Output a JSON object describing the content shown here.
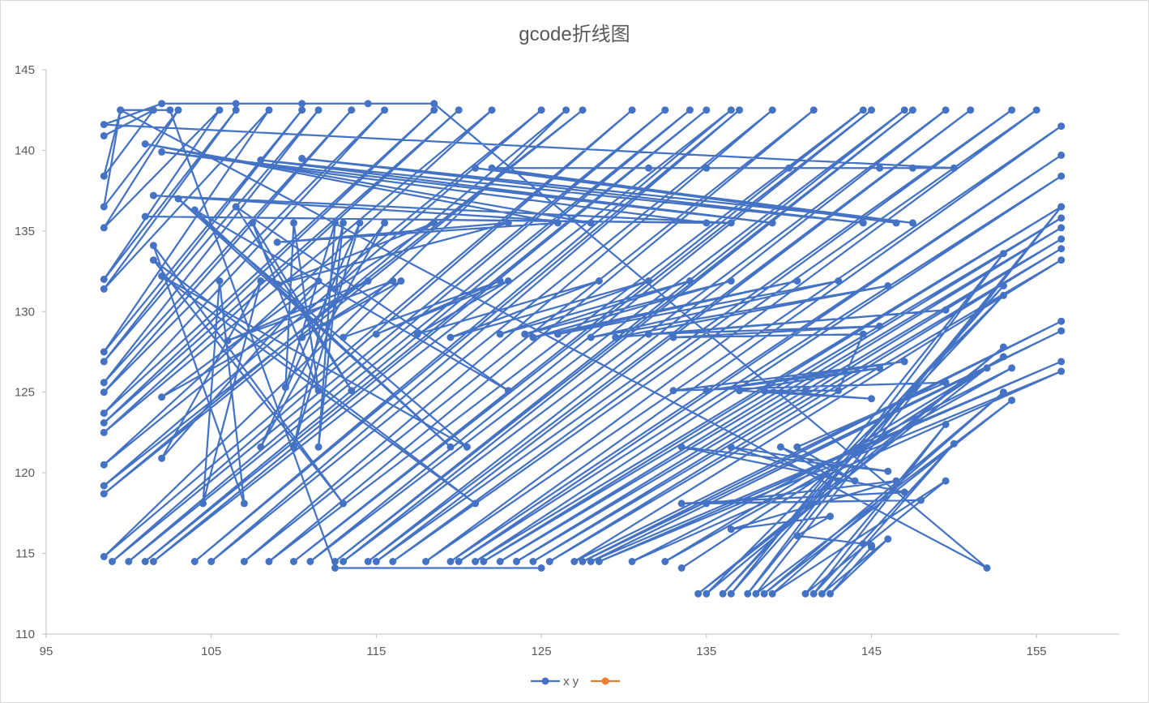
{
  "chart_data": {
    "type": "scatter",
    "title": "gcode折线图",
    "xlabel": "",
    "ylabel": "",
    "xlim": [
      95,
      160
    ],
    "ylim": [
      110,
      145
    ],
    "x_ticks": [
      95,
      105,
      115,
      125,
      135,
      145,
      155
    ],
    "y_ticks": [
      110,
      115,
      120,
      125,
      130,
      135,
      140,
      145
    ],
    "grid": false,
    "legend_position": "bottom",
    "series": [
      {
        "name": "x y",
        "color": "#4472c4",
        "marker": "circle",
        "lines": true,
        "points": [
          [
            98.5,
            140.9
          ],
          [
            101.5,
            142.5
          ],
          [
            98.5,
            138.4
          ],
          [
            99.5,
            142.5
          ],
          [
            98.5,
            136.5
          ],
          [
            103.0,
            142.5
          ],
          [
            98.5,
            135.2
          ],
          [
            105.5,
            142.5
          ],
          [
            98.5,
            132.0
          ],
          [
            106.5,
            142.5
          ],
          [
            98.5,
            131.4
          ],
          [
            108.5,
            142.5
          ],
          [
            98.5,
            127.5
          ],
          [
            110.5,
            142.5
          ],
          [
            98.5,
            126.9
          ],
          [
            111.5,
            142.5
          ],
          [
            98.5,
            125.6
          ],
          [
            113.5,
            142.5
          ],
          [
            98.5,
            125.0
          ],
          [
            115.5,
            142.5
          ],
          [
            98.5,
            123.7
          ],
          [
            118.5,
            142.5
          ],
          [
            98.5,
            123.1
          ],
          [
            120.0,
            142.5
          ],
          [
            98.5,
            122.5
          ],
          [
            122.0,
            142.5
          ],
          [
            98.5,
            120.5
          ],
          [
            125.0,
            142.5
          ],
          [
            98.5,
            119.2
          ],
          [
            127.5,
            142.5
          ],
          [
            98.5,
            118.7
          ],
          [
            126.5,
            142.5
          ],
          [
            98.5,
            114.8
          ],
          [
            130.5,
            142.5
          ],
          [
            99.0,
            114.5
          ],
          [
            132.5,
            142.5
          ],
          [
            100.0,
            114.5
          ],
          [
            134.0,
            142.5
          ],
          [
            101.0,
            114.5
          ],
          [
            135.0,
            142.5
          ],
          [
            101.5,
            114.5
          ],
          [
            136.5,
            142.5
          ],
          [
            104.0,
            114.5
          ],
          [
            137.0,
            142.5
          ],
          [
            105.0,
            114.5
          ],
          [
            139.0,
            142.5
          ],
          [
            107.0,
            114.5
          ],
          [
            141.5,
            142.5
          ],
          [
            108.5,
            114.5
          ],
          [
            144.5,
            142.5
          ],
          [
            110.0,
            114.5
          ],
          [
            145.0,
            142.5
          ],
          [
            111.0,
            114.5
          ],
          [
            147.0,
            142.5
          ],
          [
            112.5,
            114.5
          ],
          [
            147.5,
            142.5
          ],
          [
            113.0,
            114.5
          ],
          [
            149.5,
            142.5
          ],
          [
            114.5,
            114.5
          ],
          [
            151.0,
            142.5
          ],
          [
            115.0,
            114.5
          ],
          [
            153.5,
            142.5
          ],
          [
            116.0,
            114.5
          ],
          [
            155.0,
            142.5
          ],
          [
            118.0,
            114.5
          ],
          [
            156.5,
            141.5
          ],
          [
            119.5,
            114.5
          ],
          [
            156.5,
            139.7
          ],
          [
            120.0,
            114.5
          ],
          [
            156.5,
            138.4
          ],
          [
            121.0,
            114.5
          ],
          [
            156.5,
            136.5
          ],
          [
            121.5,
            114.5
          ],
          [
            156.5,
            135.8
          ],
          [
            122.5,
            114.5
          ],
          [
            156.5,
            135.2
          ],
          [
            123.5,
            114.5
          ],
          [
            156.5,
            134.5
          ],
          [
            124.5,
            114.5
          ],
          [
            156.5,
            133.9
          ],
          [
            125.5,
            114.5
          ],
          [
            156.5,
            133.2
          ],
          [
            127.0,
            114.5
          ],
          [
            156.5,
            129.4
          ],
          [
            127.5,
            114.5
          ],
          [
            156.5,
            128.8
          ],
          [
            128.0,
            114.5
          ],
          [
            156.5,
            126.9
          ],
          [
            128.5,
            114.5
          ],
          [
            156.5,
            126.3
          ],
          [
            130.5,
            114.5
          ],
          [
            153.5,
            126.5
          ],
          [
            132.5,
            114.5
          ],
          [
            153.0,
            127.2
          ],
          [
            133.5,
            114.1
          ],
          [
            152.0,
            126.5
          ],
          [
            134.5,
            112.5
          ],
          [
            153.0,
            127.8
          ],
          [
            135.0,
            112.5
          ],
          [
            153.0,
            131.0
          ],
          [
            136.0,
            112.5
          ],
          [
            153.0,
            131.6
          ],
          [
            136.5,
            112.5
          ],
          [
            153.0,
            133.6
          ],
          [
            137.5,
            112.5
          ],
          [
            156.5,
            136.5
          ],
          [
            138.0,
            112.5
          ],
          [
            153.5,
            124.5
          ],
          [
            138.5,
            112.5
          ],
          [
            153.0,
            125.0
          ],
          [
            139.0,
            112.5
          ],
          [
            149.5,
            119.5
          ],
          [
            141.0,
            112.5
          ],
          [
            149.5,
            123.0
          ],
          [
            141.5,
            112.5
          ],
          [
            150.0,
            121.8
          ],
          [
            142.0,
            112.5
          ],
          [
            146.0,
            115.9
          ],
          [
            142.5,
            112.5
          ],
          [
            145.0,
            115.4
          ],
          [
            145.0,
            115.5
          ],
          [
            144.5,
            115.6
          ],
          [
            140.5,
            116.1
          ],
          [
            142.5,
            117.3
          ],
          [
            136.5,
            116.5
          ],
          [
            146.5,
            119.5
          ],
          [
            135.0,
            118.1
          ],
          [
            148.0,
            118.3
          ],
          [
            133.5,
            118.1
          ],
          [
            147.0,
            118.8
          ],
          [
            133.5,
            121.6
          ],
          [
            146.0,
            120.1
          ],
          [
            136.5,
            121.6
          ],
          [
            143.0,
            119.5
          ],
          [
            139.5,
            121.6
          ],
          [
            144.0,
            119.5
          ],
          [
            140.5,
            121.6
          ],
          [
            149.5,
            125.6
          ],
          [
            133.0,
            125.1
          ],
          [
            147.0,
            126.9
          ],
          [
            135.0,
            125.1
          ],
          [
            145.5,
            126.5
          ],
          [
            137.0,
            125.1
          ],
          [
            145.0,
            124.6
          ],
          [
            138.5,
            125.1
          ],
          [
            141.0,
            125.1
          ],
          [
            143.0,
            125.1
          ],
          [
            144.5,
            128.6
          ],
          [
            133.0,
            128.4
          ],
          [
            145.5,
            129.1
          ],
          [
            131.5,
            128.6
          ],
          [
            149.5,
            130.1
          ],
          [
            129.5,
            128.4
          ],
          [
            146.0,
            131.6
          ],
          [
            128.0,
            128.4
          ],
          [
            143.0,
            131.9
          ],
          [
            126.0,
            128.6
          ],
          [
            140.5,
            131.9
          ],
          [
            124.5,
            128.4
          ],
          [
            136.5,
            131.9
          ],
          [
            124.0,
            128.6
          ],
          [
            134.0,
            131.9
          ],
          [
            122.5,
            128.6
          ],
          [
            131.5,
            131.9
          ],
          [
            119.5,
            128.4
          ],
          [
            128.5,
            131.9
          ],
          [
            117.5,
            128.6
          ],
          [
            123.0,
            131.9
          ],
          [
            115.0,
            128.6
          ],
          [
            122.5,
            131.9
          ],
          [
            113.0,
            128.4
          ],
          [
            116.5,
            131.9
          ],
          [
            110.5,
            128.4
          ],
          [
            116.0,
            131.9
          ],
          [
            106.0,
            128.2
          ],
          [
            114.5,
            131.9
          ],
          [
            102.0,
            124.7
          ],
          [
            111.5,
            131.9
          ],
          [
            102.0,
            120.9
          ],
          [
            108.0,
            131.9
          ],
          [
            104.5,
            118.1
          ],
          [
            105.5,
            131.9
          ],
          [
            107.0,
            118.1
          ],
          [
            101.5,
            134.1
          ],
          [
            113.0,
            118.1
          ],
          [
            101.5,
            133.2
          ],
          [
            121.0,
            118.1
          ],
          [
            102.0,
            132.2
          ],
          [
            120.5,
            121.6
          ],
          [
            103.0,
            137.0
          ],
          [
            119.5,
            121.6
          ],
          [
            104.0,
            136.3
          ],
          [
            123.0,
            125.1
          ],
          [
            106.5,
            136.5
          ],
          [
            113.5,
            125.1
          ],
          [
            107.5,
            135.5
          ],
          [
            111.5,
            125.1
          ],
          [
            110.0,
            135.5
          ],
          [
            109.5,
            125.3
          ],
          [
            112.5,
            135.5
          ],
          [
            111.5,
            121.6
          ],
          [
            113.0,
            135.5
          ],
          [
            110.0,
            121.6
          ],
          [
            114.0,
            135.5
          ],
          [
            108.0,
            121.6
          ],
          [
            115.5,
            135.5
          ],
          [
            112.5,
            131.4
          ],
          [
            118.5,
            135.5
          ],
          [
            109.0,
            131.7
          ],
          [
            123.0,
            135.5
          ],
          [
            109.0,
            134.3
          ],
          [
            126.0,
            135.5
          ],
          [
            101.0,
            140.4
          ],
          [
            128.0,
            135.5
          ],
          [
            101.5,
            137.2
          ],
          [
            136.5,
            135.5
          ],
          [
            101.0,
            135.9
          ],
          [
            135.0,
            135.5
          ],
          [
            102.0,
            139.9
          ],
          [
            139.0,
            135.5
          ],
          [
            108.0,
            139.4
          ],
          [
            144.5,
            135.5
          ],
          [
            110.5,
            139.5
          ],
          [
            147.5,
            135.5
          ],
          [
            121.0,
            138.9
          ],
          [
            146.5,
            135.5
          ],
          [
            122.0,
            138.9
          ],
          [
            131.5,
            138.9
          ],
          [
            135.0,
            138.9
          ],
          [
            140.0,
            138.9
          ],
          [
            145.5,
            138.9
          ],
          [
            147.5,
            138.9
          ],
          [
            150.0,
            138.9
          ],
          [
            98.5,
            141.6
          ],
          [
            102.0,
            142.9
          ],
          [
            106.5,
            142.9
          ],
          [
            110.5,
            142.9
          ],
          [
            114.5,
            142.9
          ],
          [
            118.5,
            142.9
          ],
          [
            152.0,
            114.1
          ],
          [
            99.5,
            142.5
          ],
          [
            102.5,
            142.5
          ],
          [
            112.5,
            114.1
          ],
          [
            125.0,
            114.1
          ]
        ]
      },
      {
        "name": "",
        "color": "#ed7d31",
        "marker": "circle",
        "lines": true,
        "points": []
      }
    ],
    "legend": [
      "x y",
      ""
    ]
  }
}
